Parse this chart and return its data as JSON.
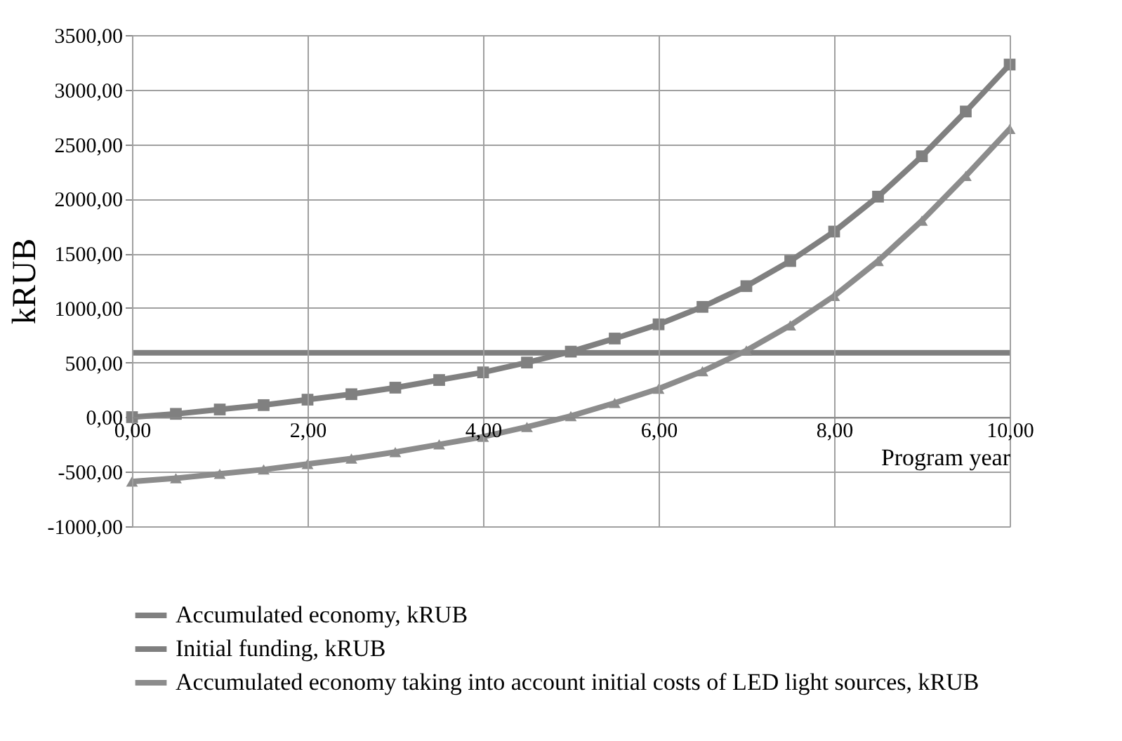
{
  "chart_data": {
    "type": "line",
    "ylabel": "kRUB",
    "xlabel": "Program year",
    "x": [
      0,
      0.5,
      1,
      1.5,
      2,
      2.5,
      3,
      3.5,
      4,
      4.5,
      5,
      5.5,
      6,
      6.5,
      7,
      7.5,
      8,
      8.5,
      9,
      9.5,
      10
    ],
    "series": [
      {
        "name": "Accumulated economy, kRUB",
        "color": "#808080",
        "marker": "square",
        "values": [
          0,
          30,
          70,
          110,
          160,
          210,
          270,
          340,
          410,
          500,
          600,
          720,
          850,
          1010,
          1200,
          1430,
          1700,
          2020,
          2390,
          2800,
          3230
        ]
      },
      {
        "name": "Initial funding, kRUB",
        "color": "#7f7f7f",
        "marker": "none",
        "x": [
          0,
          10
        ],
        "values": [
          590,
          590
        ]
      },
      {
        "name": "Accumulated economy taking into account initial costs of LED light sources, kRUB",
        "color": "#8c8c8c",
        "marker": "triangle",
        "values": [
          -590,
          -560,
          -520,
          -480,
          -430,
          -380,
          -320,
          -250,
          -180,
          -90,
          10,
          130,
          260,
          420,
          610,
          840,
          1110,
          1430,
          1800,
          2210,
          2640
        ]
      }
    ],
    "xlim": [
      0,
      10
    ],
    "xticks": [
      {
        "value": 0,
        "label": "0,00"
      },
      {
        "value": 2,
        "label": "2,00"
      },
      {
        "value": 4,
        "label": "4,00"
      },
      {
        "value": 6,
        "label": "6,00"
      },
      {
        "value": 8,
        "label": "8,00"
      },
      {
        "value": 10,
        "label": "10,00"
      }
    ],
    "ylim": [
      -1000,
      3500
    ],
    "yticks": [
      {
        "value": -1000,
        "label": "-1000,00"
      },
      {
        "value": -500,
        "label": "-500,00"
      },
      {
        "value": 0,
        "label": "0,00"
      },
      {
        "value": 500,
        "label": "500,00"
      },
      {
        "value": 1000,
        "label": "1000,00"
      },
      {
        "value": 1500,
        "label": "1500,00"
      },
      {
        "value": 2000,
        "label": "2000,00"
      },
      {
        "value": 2500,
        "label": "2500,00"
      },
      {
        "value": 3000,
        "label": "3000,00"
      },
      {
        "value": 3500,
        "label": "3500,00"
      }
    ],
    "grid": true,
    "legend": "bottom"
  }
}
